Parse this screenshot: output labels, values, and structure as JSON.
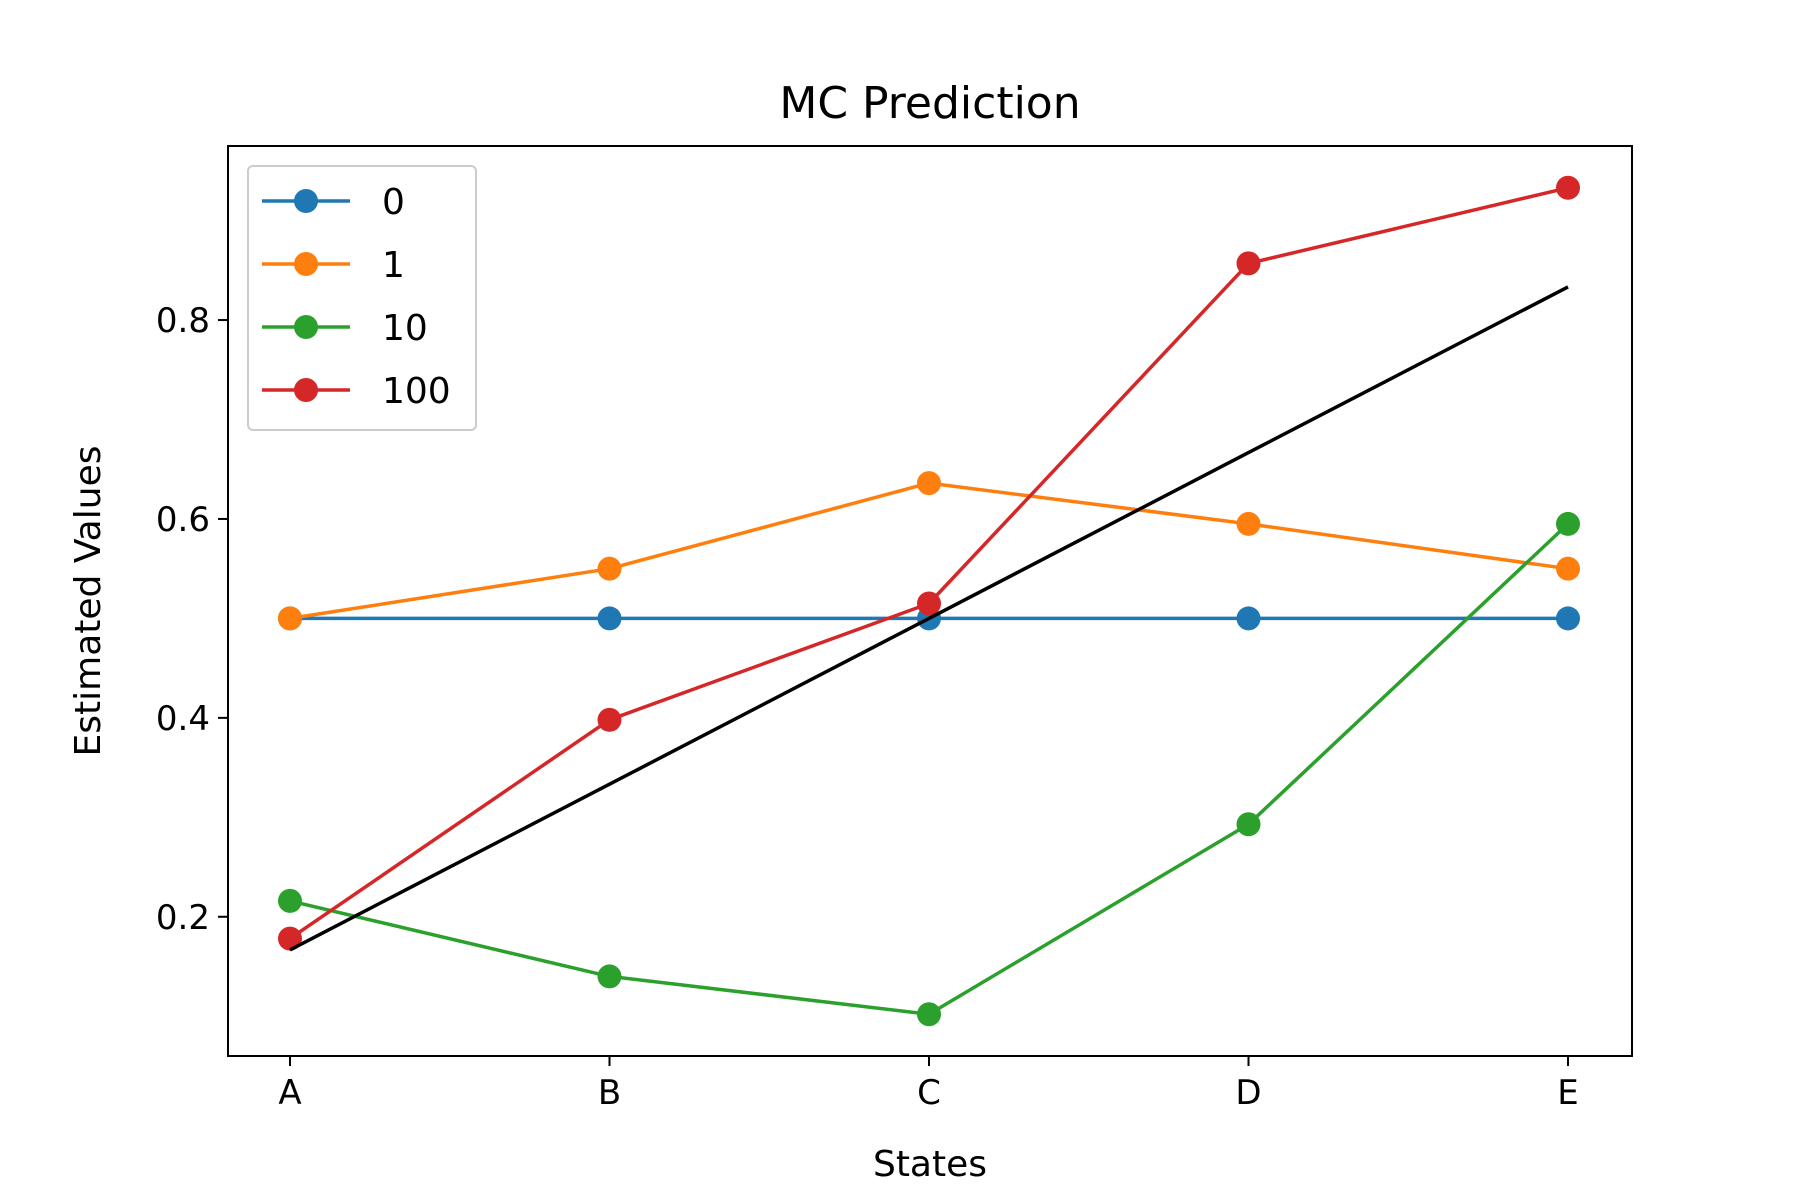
{
  "chart_data": {
    "type": "line",
    "title": "MC Prediction",
    "xlabel": "States",
    "ylabel": "Estimated Values",
    "categories": [
      "A",
      "B",
      "C",
      "D",
      "E"
    ],
    "ylim": [
      0.06,
      0.975
    ],
    "yticks": [
      0.2,
      0.4,
      0.6,
      0.8
    ],
    "ytick_labels": [
      "0.2",
      "0.4",
      "0.6",
      "0.8"
    ],
    "grid": false,
    "legend_position": "top-left",
    "series": [
      {
        "name": "0",
        "color": "#1f77b4",
        "markers": true,
        "values": [
          0.5,
          0.5,
          0.5,
          0.5,
          0.5
        ]
      },
      {
        "name": "1",
        "color": "#ff7f0e",
        "markers": true,
        "values": [
          0.5,
          0.55,
          0.636,
          0.595,
          0.55
        ]
      },
      {
        "name": "10",
        "color": "#2ca02c",
        "markers": true,
        "values": [
          0.216,
          0.14,
          0.102,
          0.293,
          0.595
        ]
      },
      {
        "name": "100",
        "color": "#d62728",
        "markers": true,
        "values": [
          0.178,
          0.398,
          0.515,
          0.857,
          0.933
        ]
      },
      {
        "color": "#000000",
        "markers": false,
        "values": [
          0.1667,
          0.3333,
          0.5,
          0.6667,
          0.8333
        ]
      }
    ]
  }
}
